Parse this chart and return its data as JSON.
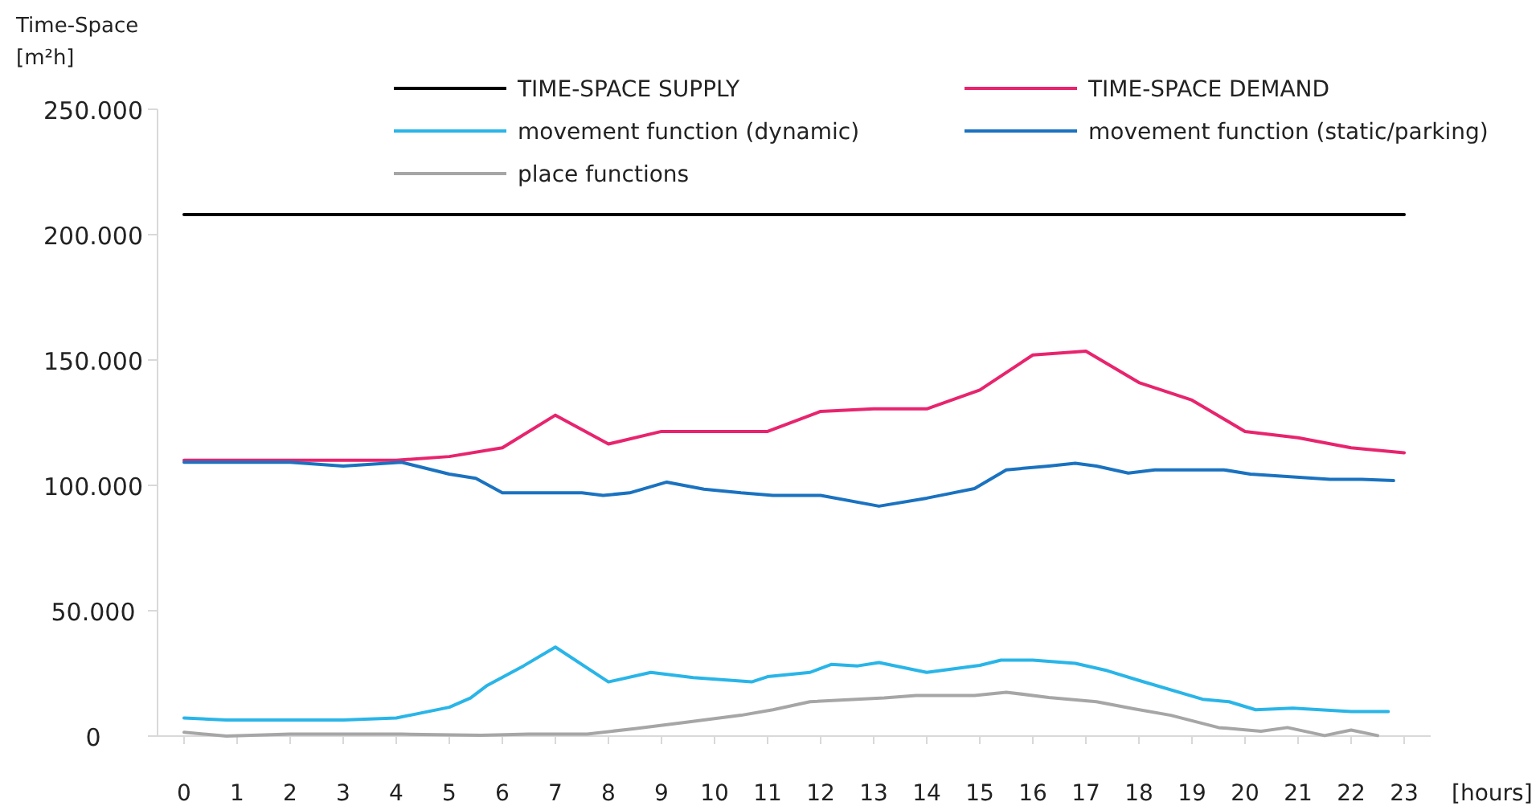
{
  "chart_data": {
    "type": "line",
    "ylabel": "Time-Space [m²h]",
    "xlabel": "[hours]",
    "xlim": [
      -0.5,
      23.5
    ],
    "xticks": [
      0,
      1,
      2,
      3,
      4,
      5,
      6,
      7,
      8,
      9,
      10,
      11,
      12,
      13,
      14,
      15,
      16,
      17,
      18,
      19,
      20,
      21,
      22,
      23
    ],
    "ylim": [
      0,
      250000
    ],
    "yticks": [
      {
        "value": 0,
        "label": "0"
      },
      {
        "value": 50000,
        "label": "50.000"
      },
      {
        "value": 100000,
        "label": "100.000"
      },
      {
        "value": 150000,
        "label": "150.000"
      },
      {
        "value": 200000,
        "label": "200.000"
      },
      {
        "value": 250000,
        "label": "250.000"
      }
    ],
    "grid": false,
    "legend": "top",
    "marker": "none",
    "line_style": "solid",
    "series": [
      {
        "name": "TIME-SPACE SUPPLY",
        "color": "#000000",
        "x": [
          0,
          23
        ],
        "values": [
          208000,
          208000
        ]
      },
      {
        "name": "TIME-SPACE DEMAND",
        "color": "#e8246e",
        "x": [
          0,
          1,
          2,
          3,
          4,
          5,
          6,
          7,
          8,
          9,
          10,
          11,
          12,
          13,
          14,
          15,
          16,
          17,
          18,
          19,
          20,
          21,
          22,
          23
        ],
        "values": [
          110000,
          110000,
          110000,
          110000,
          110000,
          111500,
          115000,
          128000,
          116500,
          121500,
          121500,
          121500,
          129500,
          130500,
          130500,
          138000,
          152000,
          153500,
          141000,
          134000,
          121500,
          119000,
          115000,
          113000
        ]
      },
      {
        "name": "movement function (dynamic)",
        "color": "#29b5e8",
        "x": [
          0,
          0.8,
          2,
          3,
          4,
          5,
          5.4,
          5.7,
          6.4,
          7,
          8,
          8.8,
          9.6,
          10.7,
          11,
          11.8,
          12.2,
          12.7,
          13.1,
          14,
          15,
          15.4,
          16,
          16.8,
          17.4,
          18,
          19.2,
          19.7,
          20.2,
          20.9,
          22,
          22.7
        ],
        "values": [
          7200,
          6400,
          6400,
          6400,
          7200,
          11500,
          15200,
          20000,
          28000,
          35500,
          21600,
          25400,
          23300,
          21600,
          23700,
          25400,
          28600,
          28000,
          29300,
          25400,
          28200,
          30300,
          30300,
          29000,
          26100,
          22200,
          14700,
          13700,
          10500,
          11100,
          9800,
          9800
        ]
      },
      {
        "name": "movement function (static/parking)",
        "color": "#1a72c0",
        "x": [
          0,
          2,
          3,
          4.1,
          5,
          5.5,
          6,
          7.5,
          7.9,
          8.4,
          9.1,
          9.8,
          10.5,
          11.1,
          12,
          13.1,
          14,
          14.4,
          14.9,
          15.5,
          16.3,
          16.8,
          17.2,
          17.8,
          18.3,
          19.6,
          20.1,
          21.6,
          22.2,
          22.8
        ],
        "values": [
          109200,
          109200,
          107700,
          109200,
          104500,
          102800,
          97000,
          97000,
          96000,
          97000,
          101300,
          98500,
          97000,
          96000,
          96000,
          91700,
          94900,
          96600,
          98700,
          106200,
          107700,
          108800,
          107700,
          104900,
          106200,
          106200,
          104500,
          102400,
          102400,
          101900
        ]
      },
      {
        "name": "place functions",
        "color": "#a6a6a6",
        "x": [
          0,
          0.8,
          2,
          4.1,
          5.6,
          6.5,
          7.6,
          8.5,
          9.5,
          10.5,
          11.1,
          11.8,
          13.2,
          13.8,
          14.9,
          15.5,
          16.3,
          17.2,
          17.9,
          18.6,
          19.5,
          20.3,
          20.8,
          21.5,
          22,
          22.5
        ],
        "values": [
          1500,
          0,
          800,
          800,
          300,
          800,
          800,
          3000,
          5600,
          8300,
          10500,
          13700,
          15200,
          16200,
          16200,
          17500,
          15400,
          13700,
          10900,
          8300,
          3400,
          1900,
          3400,
          200,
          2400,
          200
        ]
      }
    ]
  }
}
